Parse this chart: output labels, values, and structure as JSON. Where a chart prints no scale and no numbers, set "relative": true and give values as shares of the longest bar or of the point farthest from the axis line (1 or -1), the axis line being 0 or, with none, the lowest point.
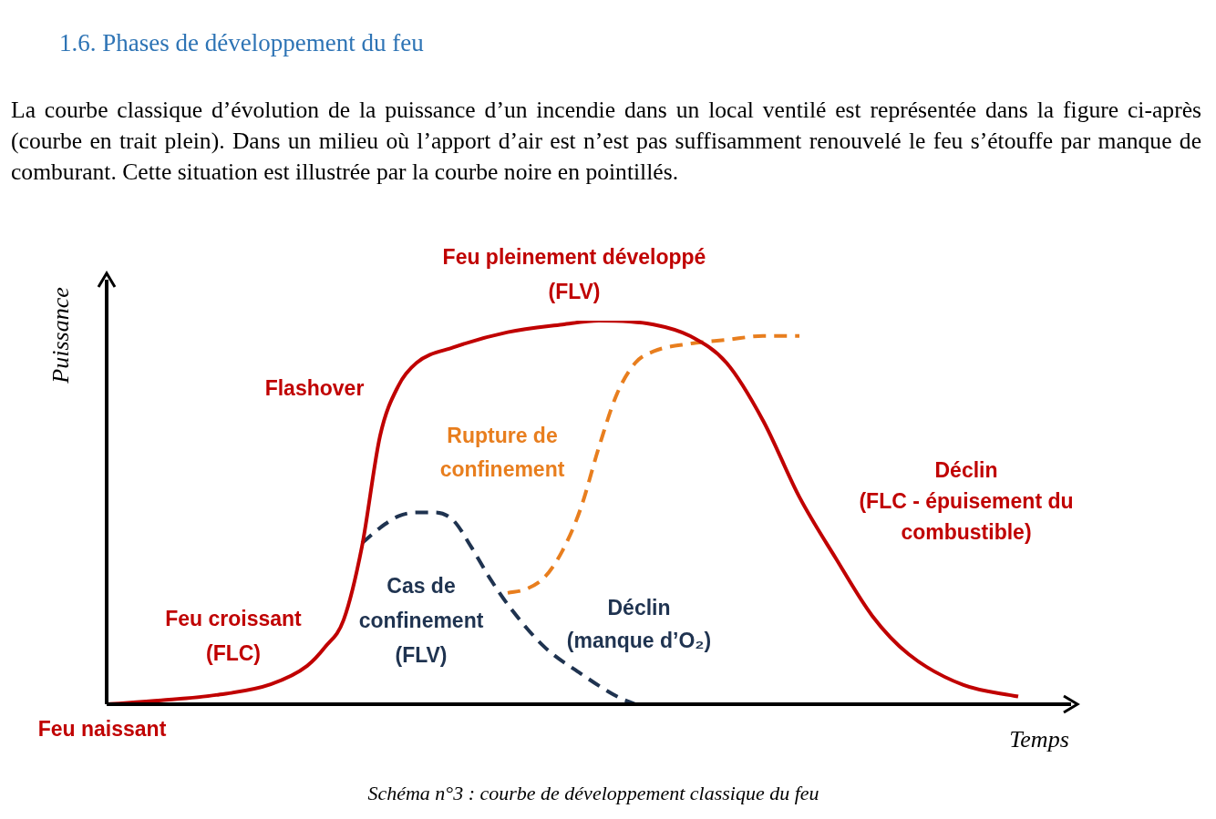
{
  "chart_data": {
    "type": "line",
    "relative": true,
    "title": "1.6.  Phases de développement du feu",
    "subtitle": "La courbe classique d’évolution de la puissance d’un incendie dans un local ventilé est représentée dans la figure ci-après (courbe en trait plein). Dans un milieu où l’apport d’air est n’est pas suffisamment renouvelé le feu s’étouffe par manque de comburant. Cette situation est illustrée par la courbe noire en pointillés.",
    "xlabel": "Temps",
    "ylabel": "Puissance",
    "legend": false,
    "marker": "none",
    "categories": [
      null,
      null,
      null,
      null,
      null,
      null,
      null,
      null,
      null,
      null,
      null,
      null,
      null,
      null,
      null,
      null,
      null,
      null,
      null,
      null,
      null,
      null,
      null,
      null,
      null,
      null,
      null,
      null,
      null,
      null,
      null,
      null,
      null,
      null,
      null,
      null,
      null,
      null,
      null,
      null,
      null,
      null,
      null,
      null,
      null,
      null,
      null,
      null,
      null,
      null,
      null,
      null,
      null,
      null
    ],
    "series": [
      {
        "color": "#c00000",
        "line_style": "solid",
        "values": [
          0,
          null,
          null,
          0.01,
          null,
          null,
          0.024,
          null,
          null,
          0.052,
          null,
          0.1,
          0.15,
          0.22,
          0.41,
          0.7,
          0.83,
          0.89,
          null,
          0.93,
          null,
          null,
          0.97,
          null,
          null,
          0.99,
          null,
          1,
          null,
          null,
          0.99,
          null,
          0.96,
          null,
          0.89,
          null,
          0.74,
          null,
          0.54,
          null,
          0.38,
          null,
          0.23,
          null,
          0.13,
          null,
          null,
          0.05,
          null,
          null,
          0.02,
          null,
          null,
          null
        ]
      },
      {
        "color": "#1f3350",
        "line_style": "dashed",
        "values": [
          null,
          null,
          null,
          null,
          null,
          null,
          null,
          null,
          null,
          null,
          null,
          null,
          null,
          null,
          0.42,
          0.46,
          0.49,
          0.5,
          0.5,
          0.48,
          0.41,
          0.33,
          0.26,
          null,
          0.15,
          null,
          0.08,
          null,
          0.02,
          0,
          null,
          null,
          null,
          null,
          null,
          null,
          null,
          null,
          null,
          null,
          null,
          null,
          null,
          null,
          null,
          null,
          null,
          null,
          null,
          null,
          null,
          null,
          null,
          null
        ]
      },
      {
        "color": "#e87e1e",
        "line_style": "dashed",
        "values": [
          null,
          null,
          null,
          null,
          null,
          null,
          null,
          null,
          null,
          null,
          null,
          null,
          null,
          null,
          null,
          null,
          null,
          null,
          null,
          null,
          null,
          null,
          0.29,
          0.3,
          0.33,
          0.4,
          0.51,
          0.67,
          0.81,
          0.89,
          0.92,
          null,
          0.94,
          null,
          0.95,
          null,
          0.96,
          null,
          0.96,
          null,
          null,
          null,
          null,
          null,
          null,
          null,
          null,
          null,
          null,
          null,
          null,
          null,
          null,
          null
        ]
      }
    ],
    "annotations": [
      "Feu pleinement développé\n(FLV)",
      "Flashover",
      "Rupture de\nconfinement",
      "Déclin\n(FLC - épuisement du\ncombustible)",
      "Feu croissant\n(FLC)",
      "Cas de\nconfinement\n(FLV)",
      "Déclin\n(manque d’O₂)",
      "Feu naissant",
      "Schéma n°3 : courbe de développement classique du feu"
    ]
  }
}
